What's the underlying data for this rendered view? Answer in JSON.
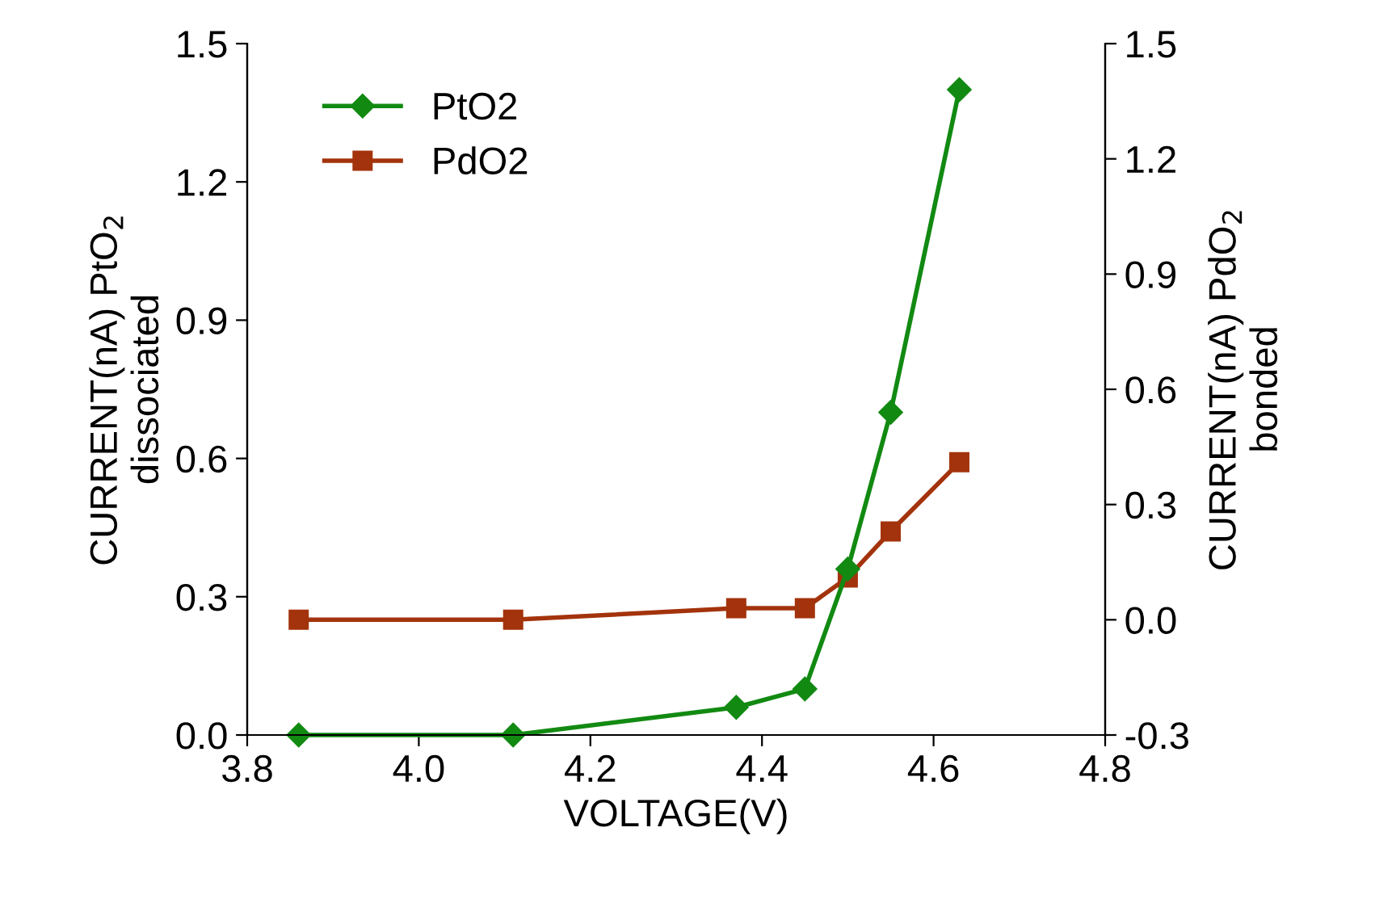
{
  "chart_data": {
    "type": "line",
    "xlabel": "VOLTAGE(V)",
    "ylabel": "CURRENT(nA) PtO$_{2}$\ndissociated",
    "y2label": "CURRENT(nA) PdO$_{2}$\nbonded",
    "x": [
      3.86,
      4.11,
      4.37,
      4.45,
      4.5,
      4.55,
      4.63
    ],
    "series": [
      {
        "name": "PtO2",
        "color": "#128a12",
        "marker": "diamond",
        "values": [
          0.0,
          0.0,
          0.06,
          0.1,
          0.36,
          0.7,
          1.4
        ]
      },
      {
        "name": "PdO2",
        "color": "#a3330c",
        "marker": "square",
        "axis": "y2",
        "values": [
          0.0,
          0.0,
          0.03,
          0.03,
          0.11,
          0.23,
          0.41
        ]
      }
    ],
    "xlim": [
      3.8,
      4.8
    ],
    "xticks": [
      3.8,
      {
        "value": 4.0,
        "label": "4.0"
      },
      4.2,
      4.4,
      4.6,
      4.8
    ],
    "ylim": [
      0.0,
      1.5
    ],
    "yticks": [
      {
        "value": 0.0,
        "label": "0.0"
      },
      0.3,
      0.6,
      0.9,
      1.2,
      1.5
    ],
    "y2lim": [
      -0.3,
      1.5
    ],
    "y2ticks": [
      -0.3,
      {
        "value": 0.0,
        "label": "0.0"
      },
      0.3,
      0.6,
      0.9,
      1.2,
      1.5
    ],
    "legend": "top left",
    "grid": false
  }
}
